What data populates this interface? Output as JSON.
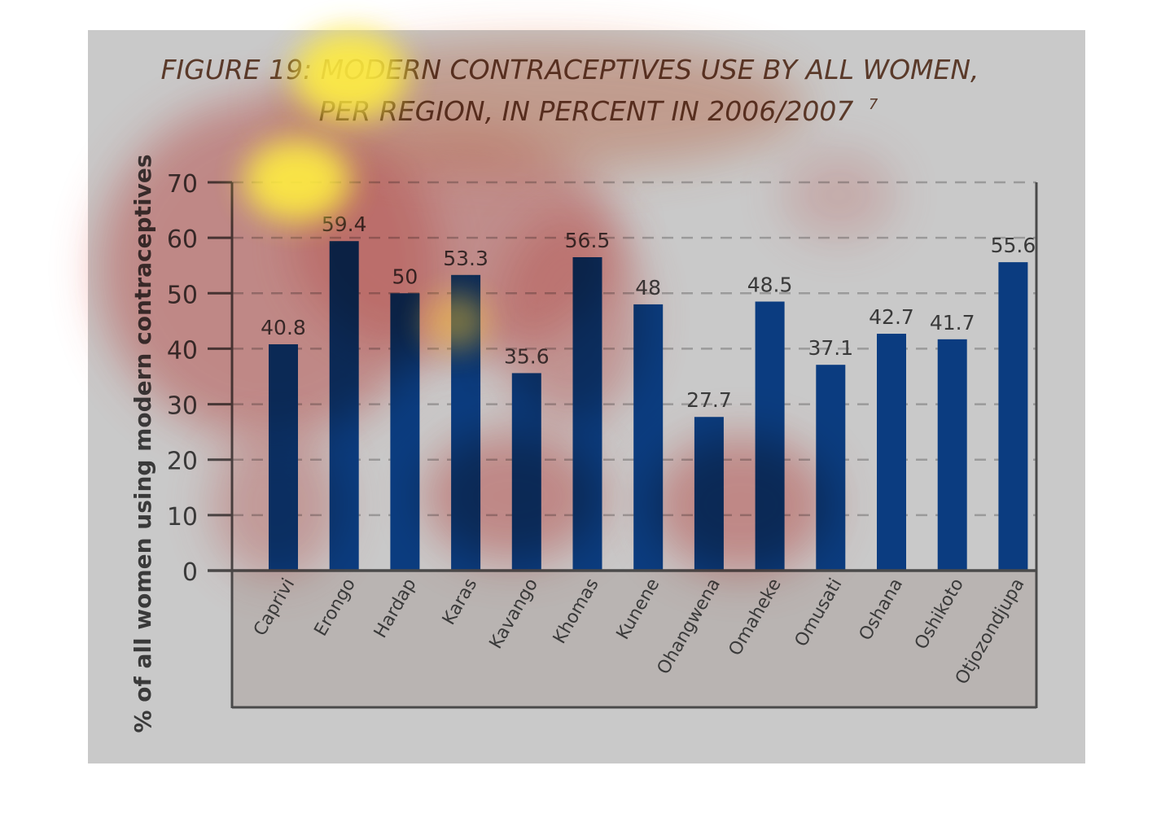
{
  "chart_data": {
    "type": "bar",
    "title_line1": "FIGURE 19: MODERN CONTRACEPTIVES USE BY ALL WOMEN,",
    "title_line2": "PER REGION, IN PERCENT IN 2006/2007",
    "title_footnote": "7",
    "ylabel": "% of all women using modern contraceptives",
    "xlabel": "",
    "ylim": [
      0,
      70
    ],
    "yticks": [
      0,
      10,
      20,
      30,
      40,
      50,
      60,
      70
    ],
    "grid": true,
    "categories": [
      "Caprivi",
      "Erongo",
      "Hardap",
      "Karas",
      "Kavango",
      "Khomas",
      "Kunene",
      "Ohangwena",
      "Omaheke",
      "Omusati",
      "Oshana",
      "Oshikoto",
      "Otjozondjupa"
    ],
    "values": [
      40.8,
      59.4,
      50,
      53.3,
      35.6,
      56.5,
      48,
      27.7,
      48.5,
      37.1,
      42.7,
      41.7,
      55.6
    ],
    "value_labels": [
      "40.8",
      "59.4",
      "50",
      "53.3",
      "35.6",
      "56.5",
      "48",
      "27.7",
      "48.5",
      "37.1",
      "42.7",
      "41.7",
      "55.6"
    ],
    "colors": {
      "bar": "#0b3c80",
      "panel": "#c9c9c9",
      "label_panel": "#b7b3b2",
      "axis": "#4a4a4a",
      "grid": "#9a9a9a",
      "title": "#5a3a2a",
      "text": "#3a3a3a"
    }
  }
}
